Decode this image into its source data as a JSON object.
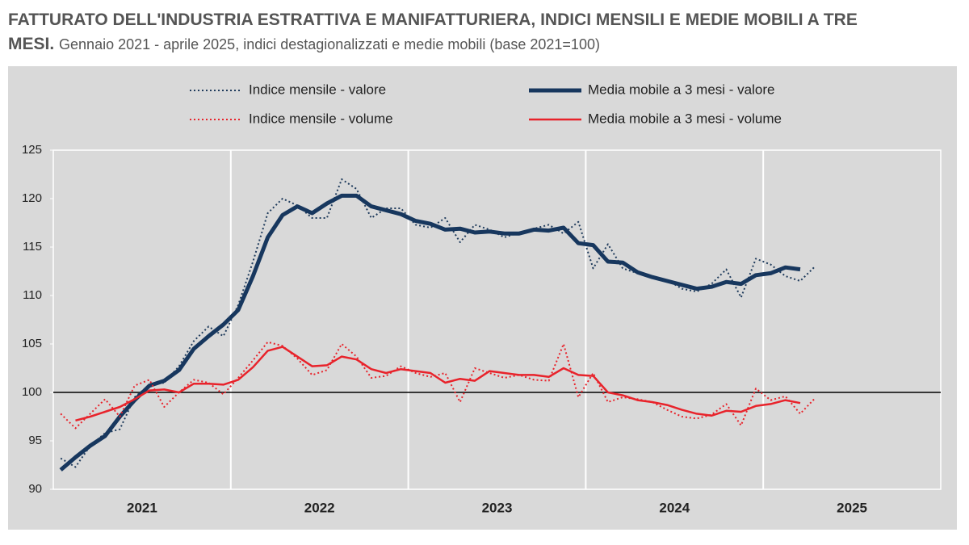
{
  "chart_data": {
    "type": "line",
    "title": "FATTURATO DELL'INDUSTRIA ESTRATTIVA E MANIFATTURIERA, INDICI MENSILI E MEDIE MOBILI A TRE MESI.",
    "subtitle": "Gennaio 2021 - aprile 2025, indici destagionalizzati e medie mobili (base 2021=100)",
    "categories": [
      null,
      null,
      null,
      null,
      null,
      null,
      "2021",
      null,
      null,
      null,
      null,
      null,
      null,
      null,
      null,
      null,
      null,
      null,
      "2022",
      null,
      null,
      null,
      null,
      null,
      null,
      null,
      null,
      null,
      null,
      null,
      "2023",
      null,
      null,
      null,
      null,
      null,
      null,
      null,
      null,
      null,
      null,
      null,
      "2024",
      null,
      null,
      null,
      null,
      null,
      null,
      null,
      null,
      null,
      null,
      null,
      "2025",
      null,
      null,
      null,
      null,
      null
    ],
    "ylim": [
      90,
      125
    ],
    "yticks": [
      90,
      95,
      100,
      105,
      110,
      115,
      120,
      125
    ],
    "reference_line": 100,
    "series": [
      {
        "name": "Indice mensile - valore",
        "color": "#1f3b5c",
        "line_style": "dotted",
        "values": [
          93.2,
          92.3,
          94.5,
          95.8,
          96.2,
          99.5,
          100.8,
          101.0,
          102.7,
          105.3,
          106.8,
          105.8,
          109.0,
          113.5,
          118.5,
          120.0,
          119.3,
          118.0,
          118.0,
          122.0,
          121.0,
          118.0,
          119.0,
          119.0,
          117.3,
          117.0,
          118.0,
          115.5,
          117.3,
          116.8,
          116.0,
          116.5,
          116.9,
          117.3,
          116.4,
          117.6,
          112.8,
          115.3,
          112.8,
          112.3,
          111.8,
          111.6,
          110.7,
          110.4,
          111.2,
          112.7,
          109.8,
          113.8,
          113.2,
          112.0,
          111.5,
          113.0,
          null,
          null,
          null,
          null,
          null,
          null,
          null,
          null
        ]
      },
      {
        "name": "Media mobile a 3 mesi - valore",
        "color": "#17375e",
        "line_style": "solid",
        "values": [
          92.0,
          93.3,
          94.5,
          95.5,
          97.5,
          99.2,
          100.7,
          101.2,
          102.3,
          104.5,
          105.8,
          107.0,
          108.5,
          112.0,
          116.0,
          118.3,
          119.2,
          118.5,
          119.5,
          120.3,
          120.3,
          119.2,
          118.8,
          118.4,
          117.7,
          117.4,
          116.8,
          116.9,
          116.5,
          116.6,
          116.4,
          116.4,
          116.8,
          116.7,
          117.0,
          115.4,
          115.2,
          113.5,
          113.4,
          112.4,
          111.9,
          111.5,
          111.1,
          110.7,
          110.9,
          111.4,
          111.2,
          112.1,
          112.3,
          112.9,
          112.7,
          null,
          null,
          null,
          null,
          null,
          null,
          null,
          null,
          null
        ]
      },
      {
        "name": "Indice mensile - volume",
        "color": "#e8232b",
        "line_style": "dotted",
        "values": [
          97.8,
          96.3,
          97.8,
          99.3,
          97.5,
          100.7,
          101.3,
          98.5,
          100.0,
          101.3,
          101.0,
          99.8,
          101.5,
          103.3,
          105.2,
          104.8,
          103.5,
          101.8,
          102.3,
          105.0,
          103.7,
          101.5,
          101.7,
          102.7,
          102.0,
          101.6,
          102.0,
          99.0,
          102.5,
          102.0,
          101.5,
          101.8,
          101.3,
          101.2,
          105.0,
          99.5,
          102.0,
          99.0,
          99.5,
          99.3,
          99.0,
          98.2,
          97.5,
          97.3,
          97.7,
          98.8,
          96.6,
          100.4,
          99.2,
          99.6,
          97.8,
          99.4,
          null,
          null,
          null,
          null,
          null,
          null,
          null,
          null
        ]
      },
      {
        "name": "Media mobile a 3 mesi - volume",
        "color": "#e8232b",
        "line_style": "solid",
        "values": [
          null,
          97.1,
          97.5,
          98.0,
          98.5,
          99.3,
          100.2,
          100.3,
          100.0,
          100.9,
          100.9,
          100.8,
          101.3,
          102.6,
          104.3,
          104.7,
          103.7,
          102.7,
          102.8,
          103.7,
          103.4,
          102.4,
          102.0,
          102.4,
          102.2,
          102.0,
          101.0,
          101.4,
          101.2,
          102.2,
          102.0,
          101.8,
          101.8,
          101.6,
          102.5,
          101.8,
          101.7,
          100.0,
          99.7,
          99.2,
          99.0,
          98.7,
          98.2,
          97.8,
          97.6,
          98.1,
          98.0,
          98.6,
          98.8,
          99.2,
          98.9,
          null,
          null,
          null,
          null,
          null,
          null,
          null,
          null,
          null
        ]
      }
    ]
  }
}
